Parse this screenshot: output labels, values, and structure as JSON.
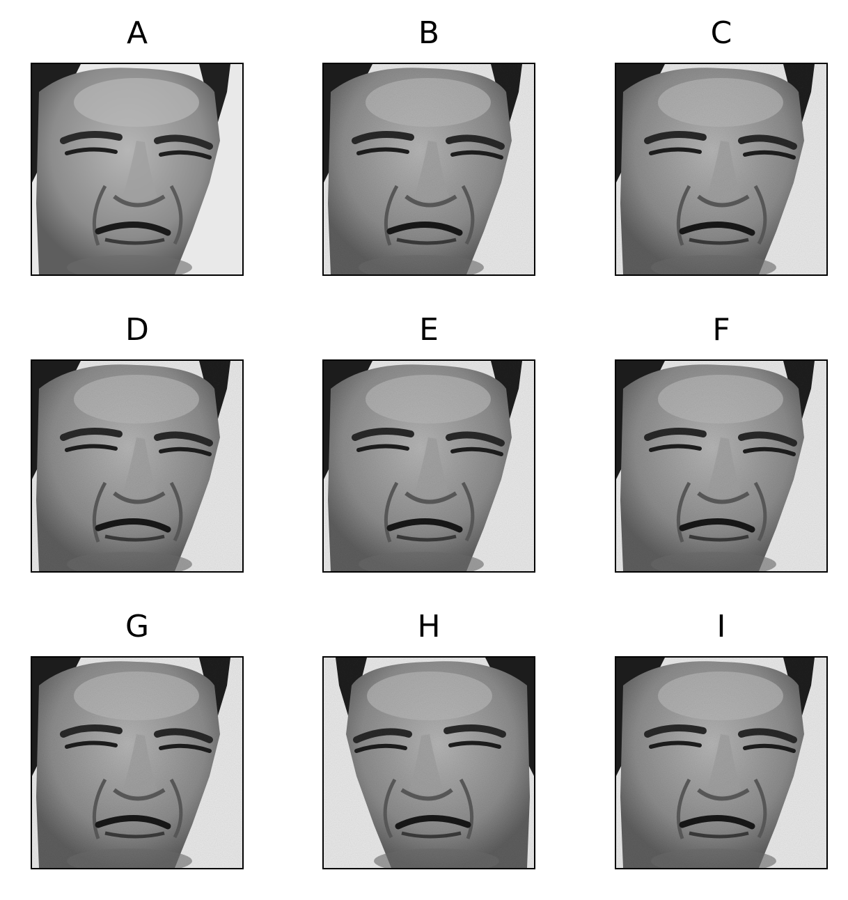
{
  "panels": [
    {
      "label": "A",
      "variant": "original"
    },
    {
      "label": "B",
      "variant": "noisy"
    },
    {
      "label": "C",
      "variant": "noisy"
    },
    {
      "label": "D",
      "variant": "noisy"
    },
    {
      "label": "E",
      "variant": "noisy"
    },
    {
      "label": "F",
      "variant": "noisy"
    },
    {
      "label": "G",
      "variant": "noisy"
    },
    {
      "label": "H",
      "variant": "flipped-noisy"
    },
    {
      "label": "I",
      "variant": "noisy"
    }
  ],
  "colors": {
    "border": "#000000",
    "background": "#ffffff"
  }
}
